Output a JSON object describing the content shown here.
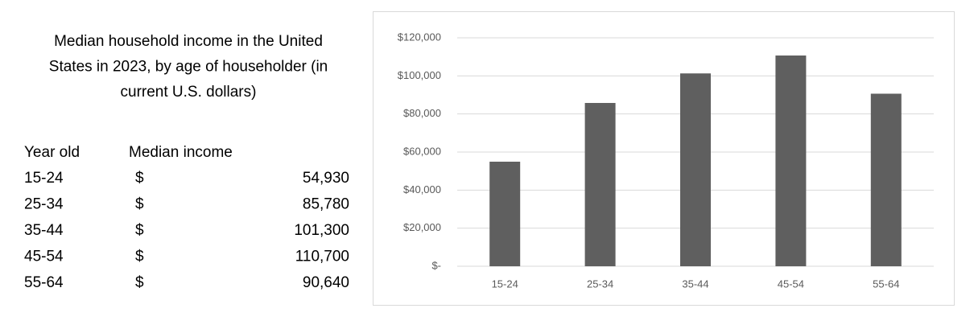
{
  "title_lines": [
    "Median household income in the United",
    "States in 2023, by age of householder (in",
    "current U.S. dollars)"
  ],
  "table": {
    "header": [
      "Year old",
      "Median income"
    ],
    "rows": [
      [
        "15-24",
        "$",
        "54,930"
      ],
      [
        "25-34",
        "$",
        "85,780"
      ],
      [
        "35-44",
        "$",
        "101,300"
      ],
      [
        "45-54",
        "$",
        "110,700"
      ],
      [
        "55-64",
        "$",
        "90,640"
      ]
    ]
  },
  "chart_data": {
    "type": "bar",
    "categories": [
      "15-24",
      "25-34",
      "35-44",
      "45-54",
      "55-64"
    ],
    "values": [
      54930,
      85780,
      101300,
      110700,
      90640
    ],
    "color": "#5f5f5f",
    "ylim": [
      0,
      120000
    ],
    "yticks": [
      {
        "value": 0,
        "label": "$-"
      },
      {
        "value": 20000,
        "label": "$20,000"
      },
      {
        "value": 40000,
        "label": "$40,000"
      },
      {
        "value": 60000,
        "label": "$60,000"
      },
      {
        "value": 80000,
        "label": "$80,000"
      },
      {
        "value": 100000,
        "label": "$100,000"
      },
      {
        "value": 120000,
        "label": "$120,000"
      }
    ],
    "grid": true
  }
}
